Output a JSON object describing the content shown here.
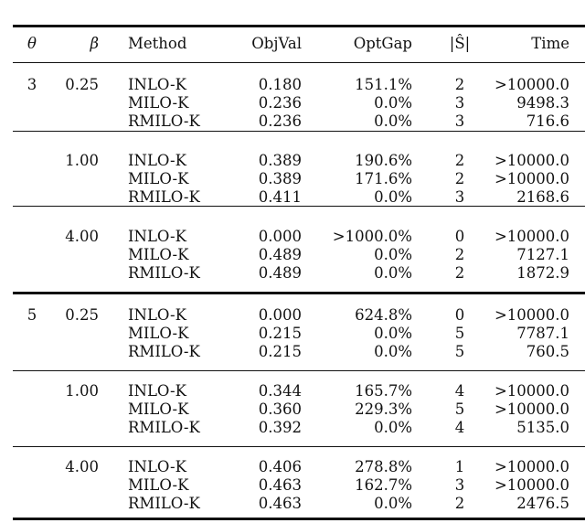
{
  "headers": {
    "theta": "θ",
    "beta": "β",
    "method": "Method",
    "objval": "ObjVal",
    "optgap": "OptGap",
    "s": "|Ŝ|",
    "time": "Time"
  },
  "groups": [
    {
      "theta": "3",
      "beta": "0.25",
      "rows": [
        {
          "method": "INLO-K",
          "objval": "0.180",
          "optgap": "151.1%",
          "s": "2",
          "time": ">10000.0"
        },
        {
          "method": "MILO-K",
          "objval": "0.236",
          "optgap": "0.0%",
          "s": "3",
          "time": "9498.3"
        },
        {
          "method": "RMILO-K",
          "objval": "0.236",
          "optgap": "0.0%",
          "s": "3",
          "time": "716.6"
        }
      ]
    },
    {
      "theta": "",
      "beta": "1.00",
      "rows": [
        {
          "method": "INLO-K",
          "objval": "0.389",
          "optgap": "190.6%",
          "s": "2",
          "time": ">10000.0"
        },
        {
          "method": "MILO-K",
          "objval": "0.389",
          "optgap": "171.6%",
          "s": "2",
          "time": ">10000.0"
        },
        {
          "method": "RMILO-K",
          "objval": "0.411",
          "optgap": "0.0%",
          "s": "3",
          "time": "2168.6"
        }
      ]
    },
    {
      "theta": "",
      "beta": "4.00",
      "rows": [
        {
          "method": "INLO-K",
          "objval": "0.000",
          "optgap": ">1000.0%",
          "s": "0",
          "time": ">10000.0"
        },
        {
          "method": "MILO-K",
          "objval": "0.489",
          "optgap": "0.0%",
          "s": "2",
          "time": "7127.1"
        },
        {
          "method": "RMILO-K",
          "objval": "0.489",
          "optgap": "0.0%",
          "s": "2",
          "time": "1872.9"
        }
      ]
    },
    {
      "theta": "5",
      "beta": "0.25",
      "rows": [
        {
          "method": "INLO-K",
          "objval": "0.000",
          "optgap": "624.8%",
          "s": "0",
          "time": ">10000.0"
        },
        {
          "method": "MILO-K",
          "objval": "0.215",
          "optgap": "0.0%",
          "s": "5",
          "time": "7787.1"
        },
        {
          "method": "RMILO-K",
          "objval": "0.215",
          "optgap": "0.0%",
          "s": "5",
          "time": "760.5"
        }
      ]
    },
    {
      "theta": "",
      "beta": "1.00",
      "rows": [
        {
          "method": "INLO-K",
          "objval": "0.344",
          "optgap": "165.7%",
          "s": "4",
          "time": ">10000.0"
        },
        {
          "method": "MILO-K",
          "objval": "0.360",
          "optgap": "229.3%",
          "s": "5",
          "time": ">10000.0"
        },
        {
          "method": "RMILO-K",
          "objval": "0.392",
          "optgap": "0.0%",
          "s": "4",
          "time": "5135.0"
        }
      ]
    },
    {
      "theta": "",
      "beta": "4.00",
      "rows": [
        {
          "method": "INLO-K",
          "objval": "0.406",
          "optgap": "278.8%",
          "s": "1",
          "time": ">10000.0"
        },
        {
          "method": "MILO-K",
          "objval": "0.463",
          "optgap": "162.7%",
          "s": "3",
          "time": ">10000.0"
        },
        {
          "method": "RMILO-K",
          "objval": "0.463",
          "optgap": "0.0%",
          "s": "2",
          "time": "2476.5"
        }
      ]
    }
  ]
}
